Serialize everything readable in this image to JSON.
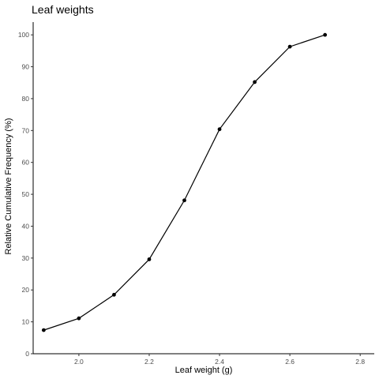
{
  "chart_data": {
    "type": "line",
    "title": "Leaf weights",
    "xlabel": "Leaf weight (g)",
    "ylabel": "Relative Cumulative Frequency (%)",
    "xlim": [
      1.87,
      2.84
    ],
    "ylim": [
      0,
      104
    ],
    "xticks": [
      2.0,
      2.2,
      2.4,
      2.6,
      2.8
    ],
    "xtick_labels": [
      "2.0",
      "2.2",
      "2.4",
      "2.6",
      "2.8"
    ],
    "yticks": [
      0,
      10,
      20,
      30,
      40,
      50,
      60,
      70,
      80,
      90,
      100
    ],
    "ytick_labels": [
      "0",
      "10",
      "20",
      "30",
      "40",
      "50",
      "60",
      "70",
      "80",
      "90",
      "100"
    ],
    "grid": false,
    "series": [
      {
        "x": [
          1.9,
          2.0,
          2.1,
          2.2,
          2.3,
          2.4,
          2.5,
          2.6,
          2.7
        ],
        "values": [
          7.4,
          11.1,
          18.5,
          29.6,
          48.1,
          70.4,
          85.2,
          96.3,
          100
        ]
      }
    ]
  }
}
